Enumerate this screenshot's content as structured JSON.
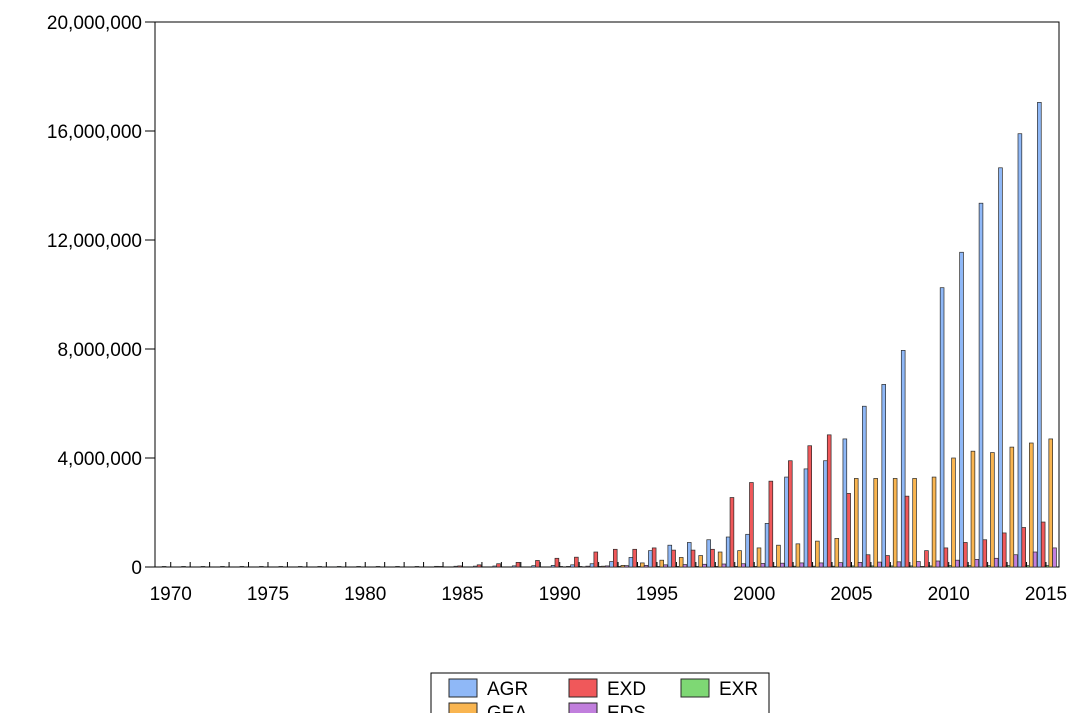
{
  "chart_data": {
    "type": "bar",
    "title": "",
    "xlabel": "",
    "ylabel": "",
    "x": [
      1970,
      1971,
      1972,
      1973,
      1974,
      1975,
      1976,
      1977,
      1978,
      1979,
      1980,
      1981,
      1982,
      1983,
      1984,
      1985,
      1986,
      1987,
      1988,
      1989,
      1990,
      1991,
      1992,
      1993,
      1994,
      1995,
      1996,
      1997,
      1998,
      1999,
      2000,
      2001,
      2002,
      2003,
      2004,
      2005,
      2006,
      2007,
      2008,
      2009,
      2010,
      2011,
      2012,
      2013,
      2014,
      2015
    ],
    "xticks": [
      "1970",
      "1975",
      "1980",
      "1985",
      "1990",
      "1995",
      "2000",
      "2005",
      "2010",
      "2015"
    ],
    "yticks": [
      "0",
      "4,000,000",
      "8,000,000",
      "12,000,000",
      "16,000,000",
      "20,000,000"
    ],
    "ylim": [
      0,
      20000000
    ],
    "grid": false,
    "legend_position": "bottom",
    "series": [
      {
        "name": "AGR",
        "color": "#8fb8f7",
        "values": [
          5000,
          5000,
          6000,
          7000,
          8000,
          9000,
          10000,
          11000,
          12000,
          14000,
          16000,
          18000,
          20000,
          22000,
          25000,
          28000,
          32000,
          36000,
          42000,
          48000,
          60000,
          80000,
          120000,
          200000,
          350000,
          600000,
          800000,
          900000,
          1000000,
          1100000,
          1200000,
          1600000,
          3300000,
          3600000,
          3900000,
          4700000,
          5900000,
          6700000,
          7950000,
          10000,
          10250000,
          11550000,
          13350000,
          14650000,
          15900000,
          17050000
        ]
      },
      {
        "name": "EXD",
        "color": "#f0585a",
        "values": [
          0,
          0,
          0,
          0,
          0,
          0,
          0,
          0,
          0,
          0,
          0,
          0,
          0,
          0,
          10000,
          40000,
          80000,
          120000,
          170000,
          240000,
          320000,
          360000,
          550000,
          650000,
          650000,
          700000,
          620000,
          620000,
          650000,
          2550000,
          3100000,
          3150000,
          3900000,
          4450000,
          4850000,
          2700000,
          450000,
          420000,
          2600000,
          600000,
          700000,
          900000,
          1000000,
          1250000,
          1450000,
          1650000
        ]
      },
      {
        "name": "EXR",
        "color": "#7ed874",
        "values": [
          0,
          0,
          0,
          0,
          0,
          0,
          0,
          0,
          0,
          0,
          0,
          0,
          0,
          0,
          0,
          0,
          0,
          0,
          0,
          0,
          10000,
          10000,
          10000,
          10000,
          10000,
          10000,
          10000,
          10000,
          10000,
          20000,
          20000,
          20000,
          30000,
          30000,
          30000,
          40000,
          40000,
          40000,
          40000,
          40000,
          50000,
          50000,
          50000,
          50000,
          50000,
          50000
        ]
      },
      {
        "name": "GEA",
        "color": "#f9b550",
        "values": [
          0,
          0,
          0,
          0,
          0,
          0,
          0,
          0,
          0,
          0,
          0,
          0,
          0,
          0,
          0,
          0,
          0,
          0,
          0,
          0,
          0,
          0,
          30000,
          60000,
          150000,
          250000,
          350000,
          420000,
          550000,
          600000,
          700000,
          800000,
          850000,
          950000,
          1050000,
          3250000,
          3250000,
          3250000,
          3250000,
          3300000,
          4000000,
          4250000,
          4200000,
          4400000,
          4550000,
          4700000
        ]
      },
      {
        "name": "EDS",
        "color": "#c17fdd",
        "values": [
          0,
          0,
          0,
          0,
          0,
          0,
          0,
          0,
          0,
          0,
          0,
          0,
          0,
          0,
          0,
          0,
          0,
          0,
          0,
          0,
          20000,
          30000,
          40000,
          50000,
          60000,
          80000,
          90000,
          100000,
          110000,
          120000,
          130000,
          140000,
          150000,
          150000,
          160000,
          170000,
          180000,
          190000,
          200000,
          220000,
          250000,
          280000,
          320000,
          450000,
          550000,
          700000
        ]
      }
    ]
  }
}
